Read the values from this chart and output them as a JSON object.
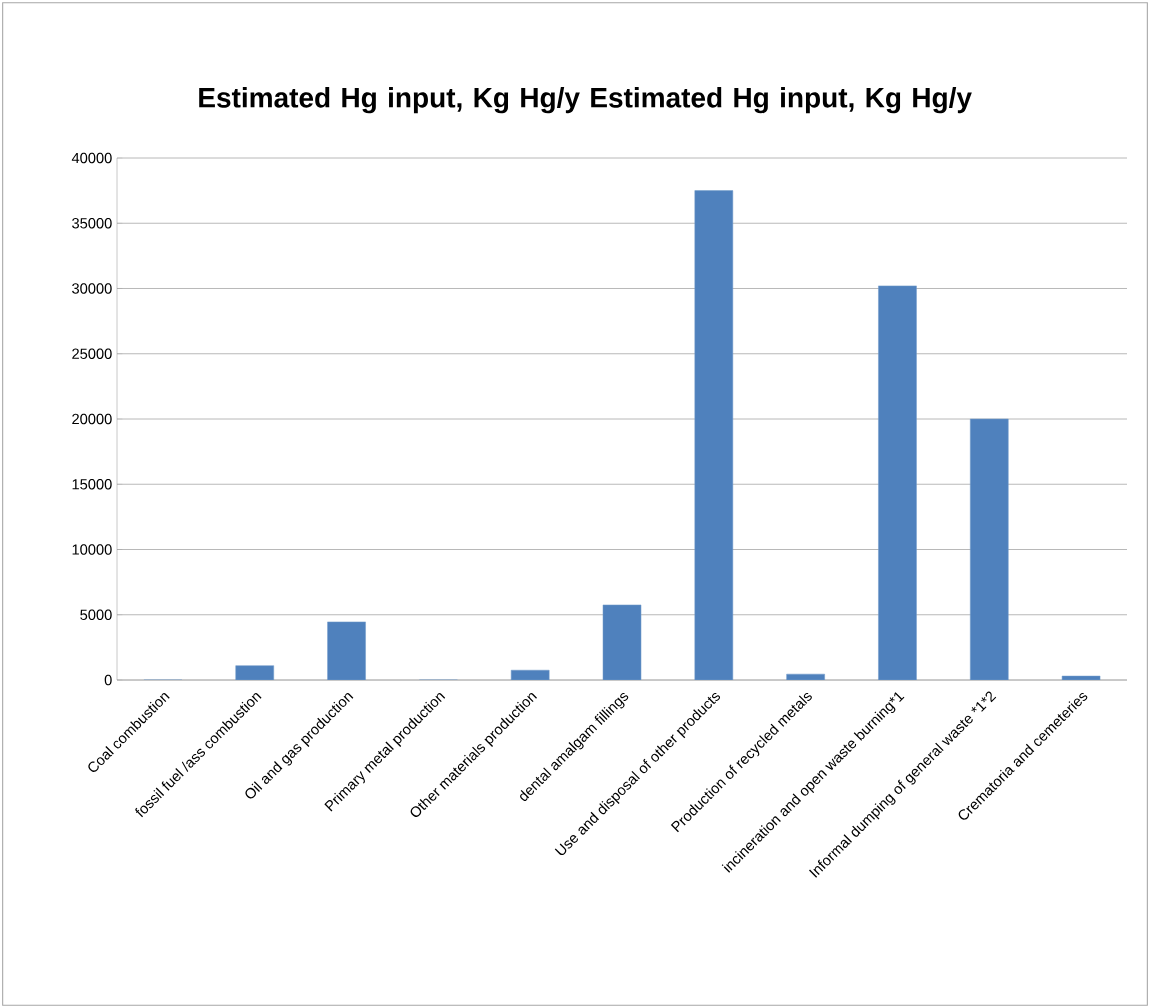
{
  "chart_data": {
    "type": "bar",
    "title": "Estimated Hg input, Kg Hg/y Estimated Hg input, Kg Hg/y",
    "categories": [
      "Coal combustion",
      "fossil fuel /ass combustion",
      "Oil and gas production",
      "Primary metal production",
      "Other materials production",
      "dental amalgam fillings",
      "Use and disposal of other products",
      "Production of recycled metals",
      "incineration and open waste burning*1",
      "Informal dumping of general waste *1*2",
      "Crematoria and cemeteries"
    ],
    "values": [
      0,
      1100,
      4450,
      0,
      750,
      5750,
      37500,
      450,
      30200,
      20000,
      300
    ],
    "color": "#4f81bd",
    "ylim": [
      0,
      40000
    ],
    "yticks": [
      0,
      5000,
      10000,
      15000,
      20000,
      25000,
      30000,
      35000,
      40000
    ],
    "grid": "y"
  }
}
